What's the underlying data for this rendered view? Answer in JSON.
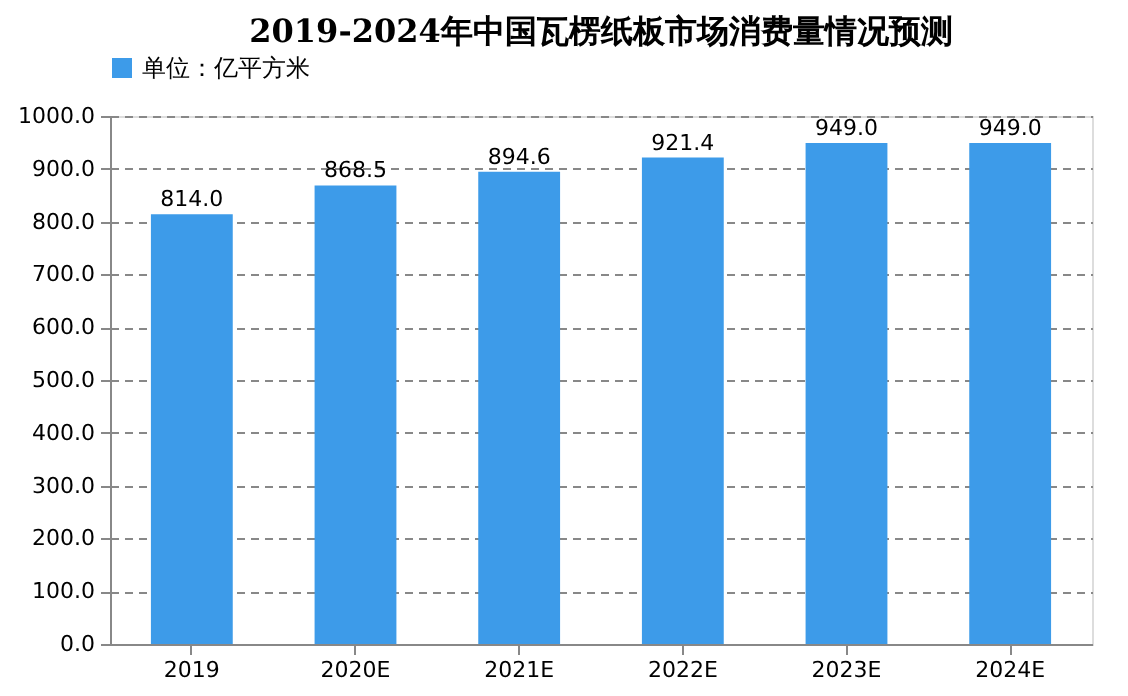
{
  "chart_data": {
    "type": "bar",
    "title": "2019-2024年中国瓦楞纸板市场消费量情况预测",
    "categories": [
      "2019",
      "2020E",
      "2021E",
      "2022E",
      "2023E",
      "2024E"
    ],
    "series": [
      {
        "name": "单位：亿平方米",
        "color": "#3d9be9",
        "values": [
          814.0,
          868.5,
          894.6,
          921.4,
          949.0,
          949.0
        ],
        "value_labels": [
          "814.0",
          "868.5",
          "894.6",
          "921.4",
          "949.0",
          "949.0"
        ]
      }
    ],
    "ylim": [
      0,
      1000
    ],
    "yticks": [
      {
        "value": 0,
        "label": "0.0"
      },
      {
        "value": 100,
        "label": "100.0"
      },
      {
        "value": 200,
        "label": "200.0"
      },
      {
        "value": 300,
        "label": "300.0"
      },
      {
        "value": 400,
        "label": "400.0"
      },
      {
        "value": 500,
        "label": "500.0"
      },
      {
        "value": 600,
        "label": "600.0"
      },
      {
        "value": 700,
        "label": "700.0"
      },
      {
        "value": 800,
        "label": "800.0"
      },
      {
        "value": 900,
        "label": "900.0"
      },
      {
        "value": 1000,
        "label": "1000.0"
      }
    ],
    "grid": "y",
    "legend": "top"
  }
}
